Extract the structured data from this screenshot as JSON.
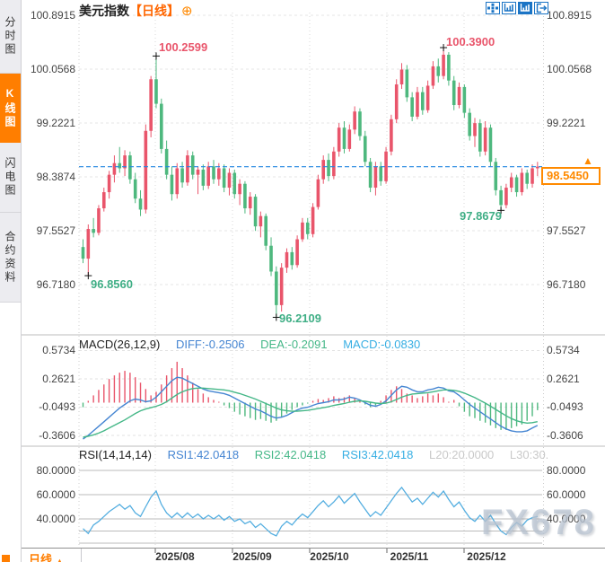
{
  "sidebar": {
    "items": [
      {
        "label": "分时图",
        "active": false
      },
      {
        "label": "K线图",
        "active": true
      },
      {
        "label": "闪电图",
        "active": false
      },
      {
        "label": "合约资料",
        "active": false
      }
    ]
  },
  "header": {
    "symbol": "美元指数",
    "period_tag": "【日线】",
    "add_icon": "⊕"
  },
  "toolbar": {
    "icons": [
      "crosshair-move-icon",
      "axis-scale-icon",
      "axis-scale-active-icon",
      "exit-icon"
    ]
  },
  "main_chart": {
    "y_labels": [
      "100.8915",
      "100.0568",
      "99.2221",
      "98.3874",
      "97.5527",
      "96.7180"
    ],
    "annotations": {
      "high_aug": "100.2599",
      "high_nov": "100.3900",
      "low_jul": "96.8560",
      "low_sep": "96.2109",
      "low_dec": "97.8679",
      "current_price": "98.5450"
    }
  },
  "macd_panel": {
    "title": "MACD(26,12,9)",
    "diff": "DIFF:-0.2506",
    "dea": "DEA:-0.2091",
    "macd": "MACD:-0.0830",
    "y_labels": [
      "0.5734",
      "0.2621",
      "-0.0493",
      "-0.3606"
    ]
  },
  "rsi_panel": {
    "title": "RSI(14,14,14)",
    "rsi1": "RSI1:42.0418",
    "rsi2": "RSI2:42.0418",
    "rsi3": "RSI3:42.0418",
    "l20": "L20:20.0000",
    "l30": "L30:30.",
    "y_labels": [
      "80.0000",
      "60.0000",
      "40.0000"
    ]
  },
  "x_axis": {
    "labels": [
      "2025/08",
      "2025/09",
      "2025/10",
      "2025/11",
      "2025/12"
    ]
  },
  "footer": {
    "period": "日线",
    "arrow": "▲"
  },
  "watermark": "FX678",
  "colors": {
    "up_red": "#e9556b",
    "down_green": "#4eb87e",
    "accent_orange": "#ff7e00",
    "price_line_blue": "#2186e0",
    "diff_blue": "#4585d2",
    "dea_green": "#44b787",
    "macd_cyan": "#36aee3",
    "grid_grey": "#e2e2e2",
    "rsi_blue": "#54aee0"
  },
  "chart_data": [
    {
      "type": "candlestick",
      "title": "美元指数",
      "interval": "日线",
      "x_tick_labels": [
        "2025/08",
        "2025/09",
        "2025/10",
        "2025/11",
        "2025/12"
      ],
      "y_ticks": [
        100.8915,
        100.0568,
        99.2221,
        98.3874,
        97.5527,
        96.718
      ],
      "current_price": 98.545,
      "marked_points": {
        "high_aug": 100.2599,
        "high_nov": 100.39,
        "low_jul": 96.856,
        "low_sep": 96.2109,
        "low_dec": 97.8679
      },
      "candles": [
        [
          97.3,
          97.42,
          97.05,
          97.12
        ],
        [
          97.12,
          97.65,
          96.856,
          97.58
        ],
        [
          97.58,
          97.75,
          97.45,
          97.52
        ],
        [
          97.52,
          97.95,
          97.48,
          97.9
        ],
        [
          97.9,
          98.22,
          97.85,
          98.15
        ],
        [
          98.15,
          98.48,
          98.05,
          98.42
        ],
        [
          98.42,
          98.72,
          98.3,
          98.6
        ],
        [
          98.6,
          98.85,
          98.45,
          98.52
        ],
        [
          98.52,
          98.8,
          98.4,
          98.72
        ],
        [
          98.72,
          98.78,
          98.28,
          98.35
        ],
        [
          98.35,
          98.45,
          97.98,
          98.05
        ],
        [
          98.05,
          98.18,
          97.78,
          97.88
        ],
        [
          97.88,
          99.2,
          97.82,
          99.1
        ],
        [
          99.1,
          99.95,
          99.0,
          99.9
        ],
        [
          99.9,
          100.2599,
          99.45,
          99.52
        ],
        [
          99.52,
          99.6,
          98.75,
          98.82
        ],
        [
          98.82,
          98.95,
          98.35,
          98.42
        ],
        [
          98.42,
          98.55,
          98.02,
          98.12
        ],
        [
          98.12,
          98.6,
          98.05,
          98.52
        ],
        [
          98.52,
          98.62,
          98.22,
          98.3
        ],
        [
          98.3,
          98.8,
          98.25,
          98.72
        ],
        [
          98.72,
          98.78,
          98.35,
          98.42
        ],
        [
          98.42,
          98.55,
          98.12,
          98.5
        ],
        [
          98.5,
          98.58,
          98.18,
          98.25
        ],
        [
          98.25,
          98.62,
          98.2,
          98.55
        ],
        [
          98.55,
          98.65,
          98.28,
          98.35
        ],
        [
          98.35,
          98.6,
          98.25,
          98.52
        ],
        [
          98.52,
          98.58,
          98.15,
          98.22
        ],
        [
          98.22,
          98.52,
          98.1,
          98.45
        ],
        [
          98.45,
          98.5,
          98.05,
          98.12
        ],
        [
          98.12,
          98.35,
          97.95,
          98.28
        ],
        [
          98.28,
          98.32,
          97.82,
          97.9
        ],
        [
          97.9,
          98.15,
          97.8,
          98.08
        ],
        [
          98.08,
          98.12,
          97.55,
          97.62
        ],
        [
          97.62,
          97.85,
          97.45,
          97.78
        ],
        [
          97.78,
          97.82,
          97.25,
          97.32
        ],
        [
          97.32,
          97.45,
          96.85,
          96.92
        ],
        [
          96.92,
          97.0,
          96.2109,
          96.4
        ],
        [
          96.4,
          97.05,
          96.3,
          96.98
        ],
        [
          96.98,
          97.28,
          96.9,
          97.22
        ],
        [
          97.22,
          97.3,
          96.95,
          97.02
        ],
        [
          97.02,
          97.48,
          96.98,
          97.42
        ],
        [
          97.42,
          97.75,
          97.38,
          97.68
        ],
        [
          97.68,
          97.75,
          97.42,
          97.5
        ],
        [
          97.5,
          97.98,
          97.45,
          97.92
        ],
        [
          97.92,
          98.42,
          97.88,
          98.35
        ],
        [
          98.35,
          98.72,
          98.28,
          98.65
        ],
        [
          98.65,
          98.75,
          98.32,
          98.4
        ],
        [
          98.4,
          98.85,
          98.35,
          98.78
        ],
        [
          98.78,
          99.22,
          98.7,
          99.15
        ],
        [
          99.15,
          99.25,
          98.75,
          98.82
        ],
        [
          98.82,
          99.2,
          98.78,
          99.12
        ],
        [
          99.12,
          99.48,
          99.05,
          99.4
        ],
        [
          99.4,
          99.45,
          98.95,
          99.02
        ],
        [
          99.02,
          99.1,
          98.55,
          98.62
        ],
        [
          98.62,
          98.68,
          98.15,
          98.22
        ],
        [
          98.22,
          98.62,
          98.1,
          98.55
        ],
        [
          98.55,
          98.62,
          98.25,
          98.32
        ],
        [
          98.32,
          98.85,
          98.28,
          98.78
        ],
        [
          98.78,
          99.35,
          98.72,
          99.28
        ],
        [
          99.28,
          99.9,
          99.22,
          99.82
        ],
        [
          99.82,
          100.15,
          99.75,
          100.05
        ],
        [
          100.05,
          100.12,
          99.55,
          99.62
        ],
        [
          99.62,
          99.7,
          99.25,
          99.32
        ],
        [
          99.32,
          99.78,
          99.28,
          99.7
        ],
        [
          99.7,
          99.78,
          99.35,
          99.42
        ],
        [
          99.42,
          99.88,
          99.38,
          99.8
        ],
        [
          99.8,
          100.18,
          99.75,
          100.1
        ],
        [
          100.1,
          100.22,
          99.85,
          99.95
        ],
        [
          99.95,
          100.39,
          99.9,
          100.28
        ],
        [
          100.28,
          100.32,
          99.8,
          99.88
        ],
        [
          99.88,
          99.95,
          99.42,
          99.5
        ],
        [
          99.5,
          99.85,
          99.45,
          99.78
        ],
        [
          99.78,
          99.82,
          99.3,
          99.38
        ],
        [
          99.38,
          99.45,
          98.95,
          99.02
        ],
        [
          99.02,
          99.3,
          98.85,
          99.22
        ],
        [
          99.22,
          99.28,
          98.7,
          98.78
        ],
        [
          98.78,
          99.25,
          98.72,
          99.15
        ],
        [
          99.15,
          99.2,
          98.55,
          98.62
        ],
        [
          98.62,
          98.68,
          98.1,
          98.18
        ],
        [
          98.18,
          98.25,
          97.8679,
          97.95
        ],
        [
          97.95,
          98.28,
          97.9,
          98.22
        ],
        [
          98.22,
          98.45,
          98.15,
          98.38
        ],
        [
          98.38,
          98.42,
          98.08,
          98.15
        ],
        [
          98.15,
          98.52,
          98.1,
          98.45
        ],
        [
          98.45,
          98.5,
          98.2,
          98.28
        ],
        [
          98.28,
          98.58,
          98.22,
          98.52
        ],
        [
          98.52,
          98.62,
          98.4,
          98.545
        ]
      ]
    },
    {
      "type": "bar",
      "name": "MACD",
      "params": [
        26,
        12,
        9
      ],
      "diff_value": -0.2506,
      "dea_value": -0.2091,
      "macd_value": -0.083,
      "y_ticks": [
        0.5734,
        0.2621,
        -0.0493,
        -0.3606
      ],
      "histogram": [
        -0.05,
        0.02,
        0.08,
        0.14,
        0.2,
        0.26,
        0.3,
        0.33,
        0.35,
        0.33,
        0.28,
        0.22,
        0.15,
        0.08,
        0.12,
        0.2,
        0.3,
        0.38,
        0.45,
        0.38,
        0.3,
        0.22,
        0.15,
        0.1,
        0.06,
        0.03,
        0.01,
        -0.03,
        -0.06,
        -0.1,
        -0.13,
        -0.15,
        -0.17,
        -0.19,
        -0.18,
        -0.2,
        -0.22,
        -0.2,
        -0.16,
        -0.12,
        -0.08,
        -0.05,
        -0.03,
        -0.01,
        0.02,
        0.04,
        0.03,
        0.05,
        0.07,
        0.05,
        0.06,
        0.08,
        0.05,
        0.02,
        -0.02,
        -0.05,
        -0.03,
        0.02,
        0.08,
        0.14,
        0.18,
        0.15,
        0.1,
        0.08,
        0.05,
        0.07,
        0.1,
        0.08,
        0.1,
        0.06,
        0.01,
        0.03,
        -0.04,
        -0.1,
        -0.15,
        -0.17,
        -0.2,
        -0.22,
        -0.25,
        -0.28,
        -0.3,
        -0.3,
        -0.28,
        -0.26,
        -0.24,
        -0.2,
        -0.15,
        -0.083
      ],
      "diff_line": [
        -0.4,
        -0.36,
        -0.31,
        -0.26,
        -0.21,
        -0.16,
        -0.11,
        -0.06,
        -0.02,
        0.02,
        0.04,
        0.03,
        0.01,
        0.02,
        0.06,
        0.12,
        0.18,
        0.24,
        0.28,
        0.27,
        0.24,
        0.21,
        0.18,
        0.15,
        0.13,
        0.12,
        0.11,
        0.1,
        0.08,
        0.05,
        0.02,
        -0.01,
        -0.04,
        -0.07,
        -0.09,
        -0.12,
        -0.15,
        -0.17,
        -0.16,
        -0.14,
        -0.11,
        -0.08,
        -0.06,
        -0.05,
        -0.03,
        -0.01,
        0.0,
        0.01,
        0.03,
        0.03,
        0.04,
        0.06,
        0.05,
        0.03,
        0.0,
        -0.03,
        -0.04,
        -0.02,
        0.02,
        0.08,
        0.14,
        0.18,
        0.17,
        0.14,
        0.12,
        0.12,
        0.14,
        0.15,
        0.17,
        0.16,
        0.13,
        0.12,
        0.08,
        0.03,
        -0.02,
        -0.06,
        -0.1,
        -0.14,
        -0.18,
        -0.22,
        -0.26,
        -0.29,
        -0.31,
        -0.32,
        -0.32,
        -0.31,
        -0.28,
        -0.2506
      ],
      "dea_line": [
        -0.38,
        -0.37,
        -0.355,
        -0.335,
        -0.31,
        -0.28,
        -0.25,
        -0.22,
        -0.19,
        -0.155,
        -0.12,
        -0.09,
        -0.07,
        -0.055,
        -0.04,
        -0.02,
        0.01,
        0.05,
        0.09,
        0.12,
        0.14,
        0.155,
        0.16,
        0.16,
        0.155,
        0.15,
        0.145,
        0.14,
        0.13,
        0.115,
        0.1,
        0.08,
        0.06,
        0.04,
        0.015,
        -0.01,
        -0.035,
        -0.06,
        -0.08,
        -0.09,
        -0.095,
        -0.095,
        -0.09,
        -0.085,
        -0.075,
        -0.065,
        -0.055,
        -0.045,
        -0.03,
        -0.02,
        -0.01,
        0.005,
        0.015,
        0.02,
        0.015,
        0.005,
        -0.005,
        -0.01,
        -0.005,
        0.01,
        0.035,
        0.06,
        0.08,
        0.095,
        0.1,
        0.105,
        0.11,
        0.12,
        0.13,
        0.14,
        0.14,
        0.135,
        0.125,
        0.105,
        0.08,
        0.055,
        0.025,
        -0.005,
        -0.04,
        -0.075,
        -0.11,
        -0.145,
        -0.175,
        -0.2,
        -0.215,
        -0.225,
        -0.22,
        -0.2091
      ]
    },
    {
      "type": "line",
      "name": "RSI",
      "params": [
        14,
        14,
        14
      ],
      "rsi1": 42.0418,
      "rsi2": 42.0418,
      "rsi3": 42.0418,
      "l20": 20.0,
      "l30": 30.0,
      "y_ticks": [
        80,
        60,
        40
      ],
      "values": [
        32,
        28,
        35,
        38,
        42,
        46,
        49,
        52,
        48,
        51,
        45,
        42,
        50,
        58,
        63,
        52,
        45,
        41,
        45,
        41,
        45,
        41,
        44,
        40,
        43,
        40,
        43,
        39,
        42,
        38,
        40,
        36,
        38,
        33,
        36,
        32,
        28,
        26,
        34,
        38,
        35,
        40,
        44,
        41,
        46,
        51,
        55,
        50,
        54,
        59,
        53,
        57,
        61,
        54,
        48,
        42,
        46,
        43,
        49,
        55,
        61,
        66,
        60,
        54,
        57,
        52,
        57,
        62,
        58,
        63,
        56,
        50,
        54,
        47,
        41,
        38,
        43,
        38,
        43,
        36,
        30,
        27,
        33,
        37,
        34,
        39,
        41,
        42.04
      ]
    }
  ]
}
